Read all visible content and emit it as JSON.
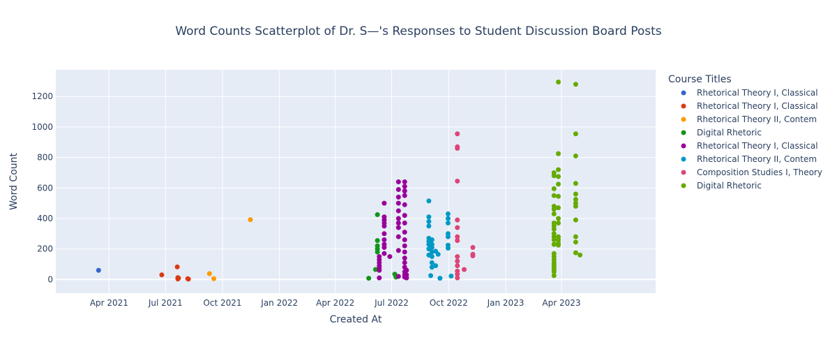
{
  "chart_data": {
    "type": "scatter",
    "title": "Word Counts Scatterplot of Dr. S—'s Responses to Student Discussion Board Posts",
    "xlabel": "Created At",
    "ylabel": "Word Count",
    "x_axis_type": "date",
    "xlim": [
      "2021-01-05",
      "2023-08-31"
    ],
    "ylim": [
      -90,
      1375
    ],
    "x_ticks": [
      {
        "date": "2021-04-01",
        "label": "Apr 2021"
      },
      {
        "date": "2021-07-01",
        "label": "Jul 2021"
      },
      {
        "date": "2021-10-01",
        "label": "Oct 2021"
      },
      {
        "date": "2022-01-01",
        "label": "Jan 2022"
      },
      {
        "date": "2022-04-01",
        "label": "Apr 2022"
      },
      {
        "date": "2022-07-01",
        "label": "Jul 2022"
      },
      {
        "date": "2022-10-01",
        "label": "Oct 2022"
      },
      {
        "date": "2023-01-01",
        "label": "Jan 2023"
      },
      {
        "date": "2023-04-01",
        "label": "Apr 2023"
      }
    ],
    "y_ticks": [
      0,
      200,
      400,
      600,
      800,
      1000,
      1200
    ],
    "y_tick_labels": [
      "0",
      "200",
      "400",
      "600",
      "800",
      "1000",
      "1200"
    ],
    "grid": true,
    "legend_title": "Course Titles",
    "legend_position": "right",
    "colors": {
      "plot_bg": "#e5ecf6",
      "grid": "#ffffff",
      "text": "#2a3f5f"
    },
    "series": [
      {
        "name": "Rhetorical Theory I, Classical",
        "color": "#3366cc",
        "points": [
          [
            "2021-03-15",
            60
          ]
        ]
      },
      {
        "name": "Rhetorical Theory I, Classical",
        "color": "#dc3912",
        "points": [
          [
            "2021-06-25",
            30
          ],
          [
            "2021-07-20",
            82
          ],
          [
            "2021-07-21",
            12
          ],
          [
            "2021-07-21",
            3
          ],
          [
            "2021-07-22",
            8
          ],
          [
            "2021-08-06",
            5
          ],
          [
            "2021-08-07",
            2
          ]
        ]
      },
      {
        "name": "Rhetorical Theory II, Contem",
        "color": "#ff9900",
        "points": [
          [
            "2021-09-10",
            38
          ],
          [
            "2021-09-17",
            5
          ],
          [
            "2021-11-15",
            392
          ]
        ]
      },
      {
        "name": "Digital Rhetoric",
        "color": "#109618",
        "points": [
          [
            "2022-05-25",
            8
          ],
          [
            "2022-06-05",
            65
          ],
          [
            "2022-06-08",
            425
          ],
          [
            "2022-06-08",
            255
          ],
          [
            "2022-06-08",
            220
          ],
          [
            "2022-06-08",
            200
          ],
          [
            "2022-06-08",
            180
          ],
          [
            "2022-07-06",
            35
          ],
          [
            "2022-07-08",
            15
          ]
        ]
      },
      {
        "name": "Rhetorical Theory I, Classical",
        "color": "#990099",
        "points": [
          [
            "2022-06-11",
            150
          ],
          [
            "2022-06-11",
            130
          ],
          [
            "2022-06-11",
            110
          ],
          [
            "2022-06-11",
            90
          ],
          [
            "2022-06-11",
            75
          ],
          [
            "2022-06-11",
            60
          ],
          [
            "2022-06-11",
            10
          ],
          [
            "2022-06-19",
            500
          ],
          [
            "2022-06-19",
            410
          ],
          [
            "2022-06-19",
            390
          ],
          [
            "2022-06-19",
            370
          ],
          [
            "2022-06-19",
            350
          ],
          [
            "2022-06-19",
            300
          ],
          [
            "2022-06-19",
            260
          ],
          [
            "2022-06-19",
            230
          ],
          [
            "2022-06-19",
            210
          ],
          [
            "2022-06-19",
            170
          ],
          [
            "2022-06-28",
            150
          ],
          [
            "2022-07-12",
            640
          ],
          [
            "2022-07-12",
            590
          ],
          [
            "2022-07-12",
            540
          ],
          [
            "2022-07-12",
            500
          ],
          [
            "2022-07-12",
            450
          ],
          [
            "2022-07-12",
            400
          ],
          [
            "2022-07-12",
            370
          ],
          [
            "2022-07-12",
            340
          ],
          [
            "2022-07-12",
            280
          ],
          [
            "2022-07-12",
            190
          ],
          [
            "2022-07-12",
            20
          ],
          [
            "2022-07-22",
            640
          ],
          [
            "2022-07-22",
            610
          ],
          [
            "2022-07-22",
            580
          ],
          [
            "2022-07-22",
            550
          ],
          [
            "2022-07-22",
            490
          ],
          [
            "2022-07-22",
            420
          ],
          [
            "2022-07-22",
            370
          ],
          [
            "2022-07-22",
            310
          ],
          [
            "2022-07-22",
            260
          ],
          [
            "2022-07-22",
            220
          ],
          [
            "2022-07-22",
            180
          ],
          [
            "2022-07-22",
            140
          ],
          [
            "2022-07-22",
            110
          ],
          [
            "2022-07-22",
            80
          ],
          [
            "2022-07-22",
            50
          ],
          [
            "2022-07-22",
            30
          ],
          [
            "2022-07-22",
            15
          ],
          [
            "2022-07-25",
            60
          ],
          [
            "2022-07-25",
            30
          ],
          [
            "2022-07-25",
            10
          ]
        ]
      },
      {
        "name": "Rhetorical Theory II, Contem",
        "color": "#0099c6",
        "points": [
          [
            "2022-08-30",
            515
          ],
          [
            "2022-08-30",
            410
          ],
          [
            "2022-08-30",
            380
          ],
          [
            "2022-08-30",
            350
          ],
          [
            "2022-08-30",
            270
          ],
          [
            "2022-08-30",
            250
          ],
          [
            "2022-08-30",
            230
          ],
          [
            "2022-08-30",
            200
          ],
          [
            "2022-08-30",
            160
          ],
          [
            "2022-09-02",
            25
          ],
          [
            "2022-09-04",
            260
          ],
          [
            "2022-09-04",
            230
          ],
          [
            "2022-09-04",
            210
          ],
          [
            "2022-09-04",
            180
          ],
          [
            "2022-09-04",
            150
          ],
          [
            "2022-09-04",
            110
          ],
          [
            "2022-09-04",
            80
          ],
          [
            "2022-09-10",
            185
          ],
          [
            "2022-09-10",
            90
          ],
          [
            "2022-09-14",
            165
          ],
          [
            "2022-09-17",
            8
          ],
          [
            "2022-09-30",
            430
          ],
          [
            "2022-09-30",
            400
          ],
          [
            "2022-09-30",
            370
          ],
          [
            "2022-09-30",
            300
          ],
          [
            "2022-09-30",
            280
          ],
          [
            "2022-09-30",
            225
          ],
          [
            "2022-09-30",
            205
          ],
          [
            "2022-10-05",
            22
          ]
        ]
      },
      {
        "name": "Composition Studies I, Theory",
        "color": "#dd4477",
        "points": [
          [
            "2022-10-15",
            955
          ],
          [
            "2022-10-15",
            870
          ],
          [
            "2022-10-15",
            860
          ],
          [
            "2022-10-15",
            645
          ],
          [
            "2022-10-15",
            390
          ],
          [
            "2022-10-15",
            340
          ],
          [
            "2022-10-15",
            280
          ],
          [
            "2022-10-15",
            255
          ],
          [
            "2022-10-15",
            150
          ],
          [
            "2022-10-15",
            120
          ],
          [
            "2022-10-15",
            90
          ],
          [
            "2022-10-15",
            55
          ],
          [
            "2022-10-15",
            35
          ],
          [
            "2022-10-15",
            10
          ],
          [
            "2022-10-26",
            65
          ],
          [
            "2022-11-09",
            210
          ],
          [
            "2022-11-09",
            165
          ],
          [
            "2022-11-09",
            155
          ]
        ]
      },
      {
        "name": "Digital Rhetoric",
        "color": "#66aa00",
        "points": [
          [
            "2023-03-20",
            700
          ],
          [
            "2023-03-20",
            680
          ],
          [
            "2023-03-20",
            595
          ],
          [
            "2023-03-20",
            550
          ],
          [
            "2023-03-20",
            480
          ],
          [
            "2023-03-20",
            460
          ],
          [
            "2023-03-20",
            430
          ],
          [
            "2023-03-20",
            370
          ],
          [
            "2023-03-20",
            350
          ],
          [
            "2023-03-20",
            330
          ],
          [
            "2023-03-20",
            300
          ],
          [
            "2023-03-20",
            280
          ],
          [
            "2023-03-20",
            260
          ],
          [
            "2023-03-20",
            230
          ],
          [
            "2023-03-20",
            170
          ],
          [
            "2023-03-20",
            150
          ],
          [
            "2023-03-20",
            130
          ],
          [
            "2023-03-20",
            110
          ],
          [
            "2023-03-20",
            95
          ],
          [
            "2023-03-20",
            80
          ],
          [
            "2023-03-20",
            65
          ],
          [
            "2023-03-20",
            50
          ],
          [
            "2023-03-20",
            25
          ],
          [
            "2023-03-27",
            1295
          ],
          [
            "2023-03-27",
            825
          ],
          [
            "2023-03-27",
            720
          ],
          [
            "2023-03-27",
            675
          ],
          [
            "2023-03-27",
            625
          ],
          [
            "2023-03-27",
            545
          ],
          [
            "2023-03-27",
            470
          ],
          [
            "2023-03-27",
            400
          ],
          [
            "2023-03-27",
            370
          ],
          [
            "2023-03-27",
            280
          ],
          [
            "2023-03-27",
            260
          ],
          [
            "2023-03-27",
            240
          ],
          [
            "2023-03-27",
            225
          ],
          [
            "2023-04-24",
            1280
          ],
          [
            "2023-04-24",
            955
          ],
          [
            "2023-04-24",
            810
          ],
          [
            "2023-04-24",
            630
          ],
          [
            "2023-04-24",
            560
          ],
          [
            "2023-04-24",
            525
          ],
          [
            "2023-04-24",
            500
          ],
          [
            "2023-04-24",
            480
          ],
          [
            "2023-04-24",
            390
          ],
          [
            "2023-04-24",
            280
          ],
          [
            "2023-04-24",
            245
          ],
          [
            "2023-04-24",
            175
          ],
          [
            "2023-05-01",
            160
          ]
        ]
      }
    ]
  }
}
